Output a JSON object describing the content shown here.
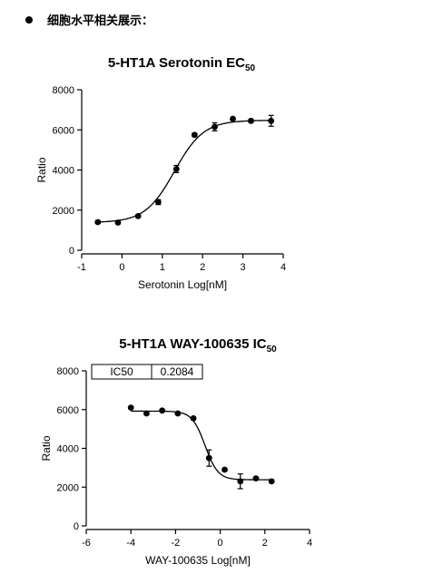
{
  "heading": {
    "text": "细胞水平相关展示："
  },
  "chart_data": [
    {
      "type": "scatter",
      "title_main": "5-HT1A Serotonin EC",
      "title_sub": "50",
      "xlabel": "Serotonin Log[nM]",
      "ylabel": "Ratio",
      "xlim": [
        -1,
        4
      ],
      "ylim": [
        0,
        8000
      ],
      "xticks": [
        "-1",
        "0",
        "1",
        "2",
        "3",
        "4"
      ],
      "yticks": [
        "0",
        "2000",
        "4000",
        "6000",
        "8000"
      ],
      "grid": false,
      "fit": {
        "kind": "sigmoid",
        "bottom": 1380,
        "top": 6480,
        "logx50": 1.3,
        "hill": 1.2
      },
      "points": [
        {
          "x": -0.6,
          "y": 1400,
          "err": 60
        },
        {
          "x": -0.1,
          "y": 1380,
          "err": 50
        },
        {
          "x": 0.4,
          "y": 1700,
          "err": 60
        },
        {
          "x": 0.9,
          "y": 2400,
          "err": 120
        },
        {
          "x": 1.35,
          "y": 4050,
          "err": 180
        },
        {
          "x": 1.8,
          "y": 5750,
          "err": 80
        },
        {
          "x": 2.3,
          "y": 6150,
          "err": 200
        },
        {
          "x": 2.75,
          "y": 6550,
          "err": 60
        },
        {
          "x": 3.2,
          "y": 6450,
          "err": 80
        },
        {
          "x": 3.7,
          "y": 6450,
          "err": 270
        }
      ]
    },
    {
      "type": "scatter",
      "title_main": "5-HT1A WAY-100635 IC",
      "title_sub": "50",
      "xlabel": "WAY-100635 Log[nM]",
      "ylabel": "Ratio",
      "xlim": [
        -6,
        4
      ],
      "ylim": [
        0,
        8000
      ],
      "xticks": [
        "-6",
        "-4",
        "-2",
        "0",
        "2",
        "4"
      ],
      "yticks": [
        "0",
        "2000",
        "4000",
        "6000",
        "8000"
      ],
      "grid": false,
      "table": {
        "label": "IC50",
        "value": "0.2084"
      },
      "fit": {
        "kind": "sigmoid",
        "bottom": 2380,
        "top": 5920,
        "logx50": -0.68,
        "hill": -1.5
      },
      "points": [
        {
          "x": -4.0,
          "y": 6100,
          "err": 50
        },
        {
          "x": -3.3,
          "y": 5800,
          "err": 50
        },
        {
          "x": -2.6,
          "y": 5950,
          "err": 50
        },
        {
          "x": -1.9,
          "y": 5800,
          "err": 60
        },
        {
          "x": -1.2,
          "y": 5550,
          "err": 60
        },
        {
          "x": -0.5,
          "y": 3500,
          "err": 420
        },
        {
          "x": 0.2,
          "y": 2900,
          "err": 60
        },
        {
          "x": 0.9,
          "y": 2300,
          "err": 380
        },
        {
          "x": 1.6,
          "y": 2450,
          "err": 60
        },
        {
          "x": 2.3,
          "y": 2300,
          "err": 60
        }
      ]
    }
  ]
}
